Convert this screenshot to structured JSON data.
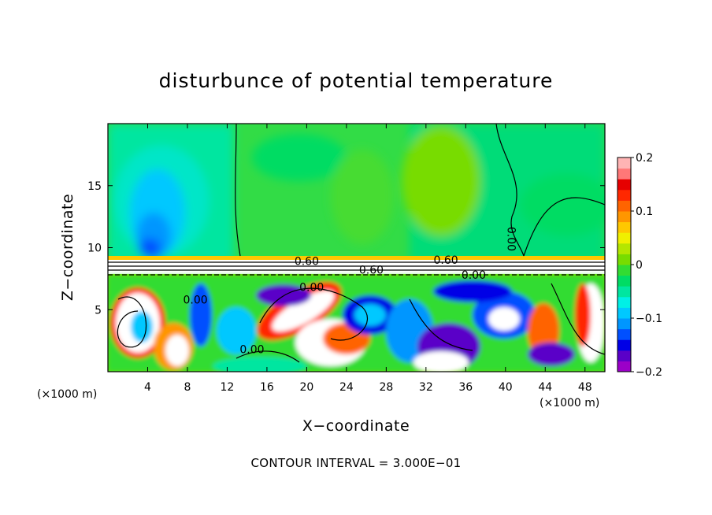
{
  "chart_data": {
    "type": "heatmap",
    "title": "disturbunce of potential temperature",
    "xlabel": "X−coordinate",
    "ylabel": "Z−coordinate",
    "x_unit": "(×1000 m)",
    "x_unit_right": "(×1000 m)",
    "xlim": [
      0,
      50
    ],
    "ylim": [
      0,
      20
    ],
    "x_ticks": [
      4,
      8,
      12,
      16,
      20,
      24,
      28,
      32,
      36,
      40,
      44,
      48
    ],
    "y_ticks": [
      5,
      10,
      15
    ],
    "colorbar": {
      "range": [
        -0.2,
        0.2
      ],
      "ticks": [
        {
          "value": 0.2,
          "label": "0.2"
        },
        {
          "value": 0.1,
          "label": "0.1"
        },
        {
          "value": 0,
          "label": "0"
        },
        {
          "value": -0.1,
          "label": "−0.1"
        },
        {
          "value": -0.2,
          "label": "−0.2"
        }
      ],
      "colors": [
        "#9b00c8",
        "#5a00c8",
        "#0000e6",
        "#0050ff",
        "#0096ff",
        "#00c8ff",
        "#00f0e6",
        "#00e6a0",
        "#00dc64",
        "#32dc32",
        "#78dc00",
        "#b4e600",
        "#f0f000",
        "#ffc800",
        "#ff9600",
        "#ff6400",
        "#ff2800",
        "#e60000",
        "#ff7878",
        "#ffb4b4"
      ]
    },
    "contour_labels": [
      {
        "x": 34.0,
        "y": 8.7,
        "text": "0.60"
      },
      {
        "x": 26.5,
        "y": 7.9,
        "text": "0.60"
      },
      {
        "x": 20.0,
        "y": 8.6,
        "text": "0.60"
      },
      {
        "x": 36.8,
        "y": 7.5,
        "text": "0.00"
      },
      {
        "x": 20.5,
        "y": 6.5,
        "text": "0.00"
      },
      {
        "x": 14.5,
        "y": 1.5,
        "text": "0.00"
      },
      {
        "x": 8.8,
        "y": 5.5,
        "text": "0.00"
      },
      {
        "x": 40.2,
        "y": 10.7,
        "text": "0.00"
      }
    ],
    "footer": "CONTOUR INTERVAL = 3.000E−01"
  }
}
